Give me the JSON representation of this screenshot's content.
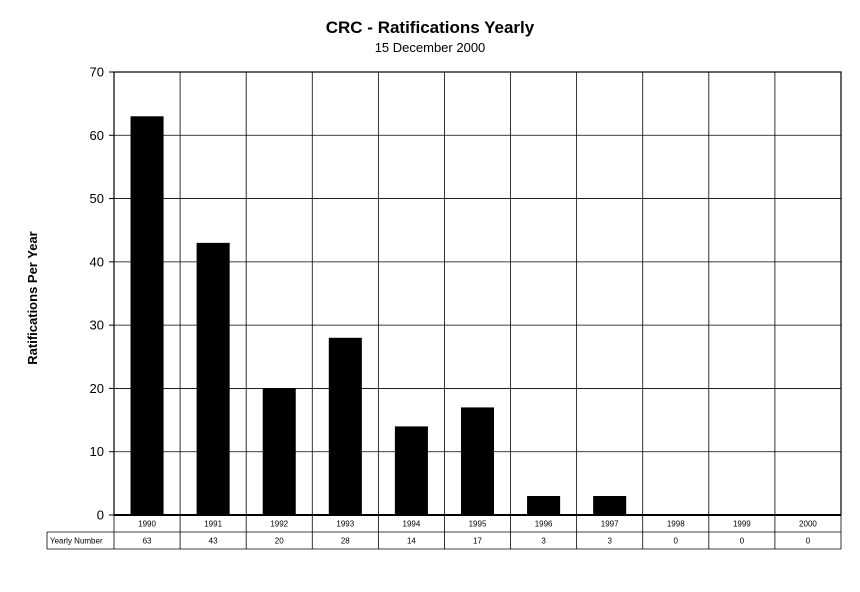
{
  "chart_data": {
    "type": "bar",
    "title": "CRC - Ratifications Yearly",
    "subtitle": "15 December 2000",
    "xlabel": "",
    "ylabel": "Ratifications Per Year",
    "categories": [
      "1990",
      "1991",
      "1992",
      "1993",
      "1994",
      "1995",
      "1996",
      "1997",
      "1998",
      "1999",
      "2000"
    ],
    "series": [
      {
        "name": "Yearly Number",
        "values": [
          63,
          43,
          20,
          28,
          14,
          17,
          3,
          3,
          0,
          0,
          0
        ]
      }
    ],
    "ylim": [
      0,
      70
    ],
    "yticks": [
      0,
      10,
      20,
      30,
      40,
      50,
      60,
      70
    ],
    "grid": true,
    "legend": "none",
    "bar_color": "#000000",
    "data_table": {
      "row_label": "Yearly Number",
      "values": [
        "63",
        "43",
        "20",
        "28",
        "14",
        "17",
        "3",
        "3",
        "0",
        "0",
        "0"
      ]
    }
  }
}
